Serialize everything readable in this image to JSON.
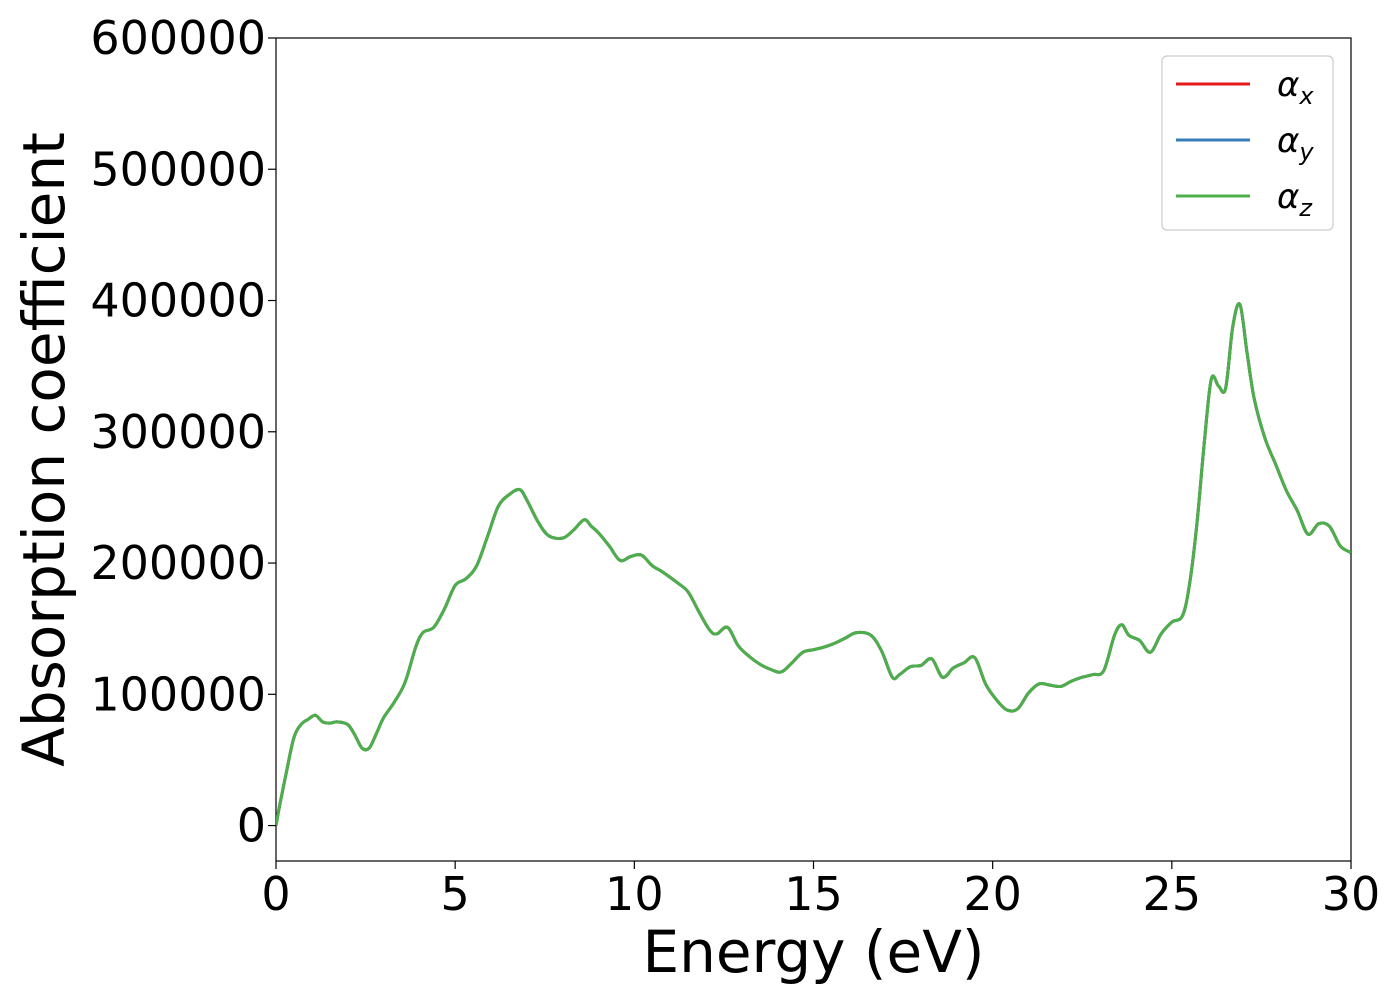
{
  "chart_data": {
    "type": "line",
    "xlabel": "Energy (eV)",
    "ylabel": "Absorption coefficient",
    "xlim": [
      0,
      30
    ],
    "ylim": [
      -27000,
      600000
    ],
    "xticks": [
      0,
      5,
      10,
      15,
      20,
      25,
      30
    ],
    "yticks": [
      0,
      100000,
      200000,
      300000,
      400000,
      500000,
      600000
    ],
    "xtick_labels": [
      "0",
      "5",
      "10",
      "15",
      "20",
      "25",
      "30"
    ],
    "ytick_labels": [
      "0",
      "100000",
      "200000",
      "300000",
      "400000",
      "500000",
      "600000"
    ],
    "grid": false,
    "legend_position": "top-right",
    "colors": {
      "x": "#e41a1c",
      "y": "#377eb8",
      "z": "#4daf4a"
    },
    "x": [
      0,
      0.1,
      0.3,
      0.5,
      0.7,
      0.9,
      1.1,
      1.3,
      1.5,
      1.7,
      2.0,
      2.2,
      2.4,
      2.6,
      2.8,
      3.0,
      3.3,
      3.6,
      3.9,
      4.1,
      4.4,
      4.7,
      5.0,
      5.3,
      5.6,
      5.9,
      6.2,
      6.5,
      6.8,
      7.0,
      7.3,
      7.6,
      8.0,
      8.3,
      8.6,
      8.8,
      9.0,
      9.3,
      9.6,
      9.9,
      10.2,
      10.5,
      10.8,
      11.2,
      11.5,
      11.8,
      12.1,
      12.3,
      12.6,
      12.9,
      13.2,
      13.5,
      13.8,
      14.1,
      14.4,
      14.7,
      15.0,
      15.3,
      15.6,
      15.9,
      16.2,
      16.6,
      16.9,
      17.2,
      17.4,
      17.7,
      18.0,
      18.3,
      18.6,
      18.9,
      19.2,
      19.5,
      19.8,
      20.1,
      20.4,
      20.7,
      21.0,
      21.3,
      21.6,
      21.9,
      22.2,
      22.5,
      22.8,
      23.1,
      23.4,
      23.6,
      23.8,
      24.1,
      24.4,
      24.7,
      25.0,
      25.3,
      25.5,
      25.7,
      25.9,
      26.1,
      26.3,
      26.5,
      26.7,
      26.9,
      27.1,
      27.3,
      27.6,
      27.9,
      28.2,
      28.5,
      28.8,
      29.1,
      29.4,
      29.7,
      30.0
    ],
    "series": [
      {
        "name": "α_x",
        "values": [
          0,
          15000,
          42000,
          67000,
          77000,
          81000,
          84000,
          79000,
          78000,
          79000,
          77000,
          69000,
          59000,
          59000,
          70000,
          82000,
          94000,
          109000,
          136000,
          147000,
          151000,
          165000,
          183000,
          188000,
          198000,
          220000,
          243000,
          252000,
          256000,
          248000,
          232000,
          221000,
          219000,
          225000,
          233000,
          228000,
          223000,
          213000,
          202000,
          205000,
          206000,
          198000,
          193000,
          185000,
          178000,
          163000,
          149000,
          146000,
          151000,
          137000,
          129000,
          123000,
          119000,
          117000,
          124000,
          132000,
          134000,
          136000,
          139000,
          143000,
          147000,
          145000,
          133000,
          113000,
          115000,
          121000,
          122000,
          127000,
          113000,
          120000,
          124000,
          128000,
          108000,
          96000,
          88000,
          89000,
          101000,
          108000,
          107000,
          106000,
          110000,
          113000,
          115000,
          118000,
          145000,
          153000,
          145000,
          141000,
          132000,
          146000,
          155000,
          160000,
          185000,
          230000,
          290000,
          340000,
          335000,
          333000,
          380000,
          397000,
          360000,
          325000,
          295000,
          275000,
          255000,
          240000,
          222000,
          230000,
          228000,
          213000,
          208000
        ]
      },
      {
        "name": "α_y",
        "values": [
          0,
          15000,
          42000,
          67000,
          77000,
          81000,
          84000,
          79000,
          78000,
          79000,
          77000,
          69000,
          59000,
          59000,
          70000,
          82000,
          94000,
          109000,
          136000,
          147000,
          151000,
          165000,
          183000,
          188000,
          198000,
          220000,
          243000,
          252000,
          256000,
          248000,
          232000,
          221000,
          219000,
          225000,
          233000,
          228000,
          223000,
          213000,
          202000,
          205000,
          206000,
          198000,
          193000,
          185000,
          178000,
          163000,
          149000,
          146000,
          151000,
          137000,
          129000,
          123000,
          119000,
          117000,
          124000,
          132000,
          134000,
          136000,
          139000,
          143000,
          147000,
          145000,
          133000,
          113000,
          115000,
          121000,
          122000,
          127000,
          113000,
          120000,
          124000,
          128000,
          108000,
          96000,
          88000,
          89000,
          101000,
          108000,
          107000,
          106000,
          110000,
          113000,
          115000,
          118000,
          145000,
          153000,
          145000,
          141000,
          132000,
          146000,
          155000,
          160000,
          185000,
          230000,
          290000,
          340000,
          335000,
          333000,
          380000,
          397000,
          360000,
          325000,
          295000,
          275000,
          255000,
          240000,
          222000,
          230000,
          228000,
          213000,
          208000
        ]
      },
      {
        "name": "α_z",
        "values": [
          0,
          15000,
          42000,
          67000,
          77000,
          81000,
          84000,
          79000,
          78000,
          79000,
          77000,
          69000,
          59000,
          59000,
          70000,
          82000,
          94000,
          109000,
          136000,
          147000,
          151000,
          165000,
          183000,
          188000,
          198000,
          220000,
          243000,
          252000,
          256000,
          248000,
          232000,
          221000,
          219000,
          225000,
          233000,
          228000,
          223000,
          213000,
          202000,
          205000,
          206000,
          198000,
          193000,
          185000,
          178000,
          163000,
          149000,
          146000,
          151000,
          137000,
          129000,
          123000,
          119000,
          117000,
          124000,
          132000,
          134000,
          136000,
          139000,
          143000,
          147000,
          145000,
          133000,
          113000,
          115000,
          121000,
          122000,
          127000,
          113000,
          120000,
          124000,
          128000,
          108000,
          96000,
          88000,
          89000,
          101000,
          108000,
          107000,
          106000,
          110000,
          113000,
          115000,
          118000,
          145000,
          153000,
          145000,
          141000,
          132000,
          146000,
          155000,
          160000,
          185000,
          230000,
          290000,
          340000,
          335000,
          333000,
          380000,
          397000,
          360000,
          325000,
          295000,
          275000,
          255000,
          240000,
          222000,
          230000,
          228000,
          213000,
          208000
        ]
      }
    ]
  },
  "legend": [
    {
      "symbol": "α",
      "sub": "x"
    },
    {
      "symbol": "α",
      "sub": "y"
    },
    {
      "symbol": "α",
      "sub": "z"
    }
  ]
}
